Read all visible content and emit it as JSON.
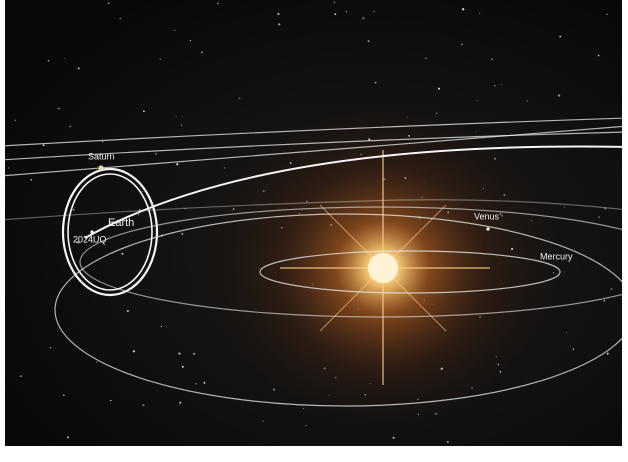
{
  "bodies": [
    {
      "label": "Saturn"
    },
    {
      "label": "Earth"
    },
    {
      "label": "2024UQ"
    },
    {
      "label": "Venus"
    },
    {
      "label": "Mercury"
    }
  ]
}
